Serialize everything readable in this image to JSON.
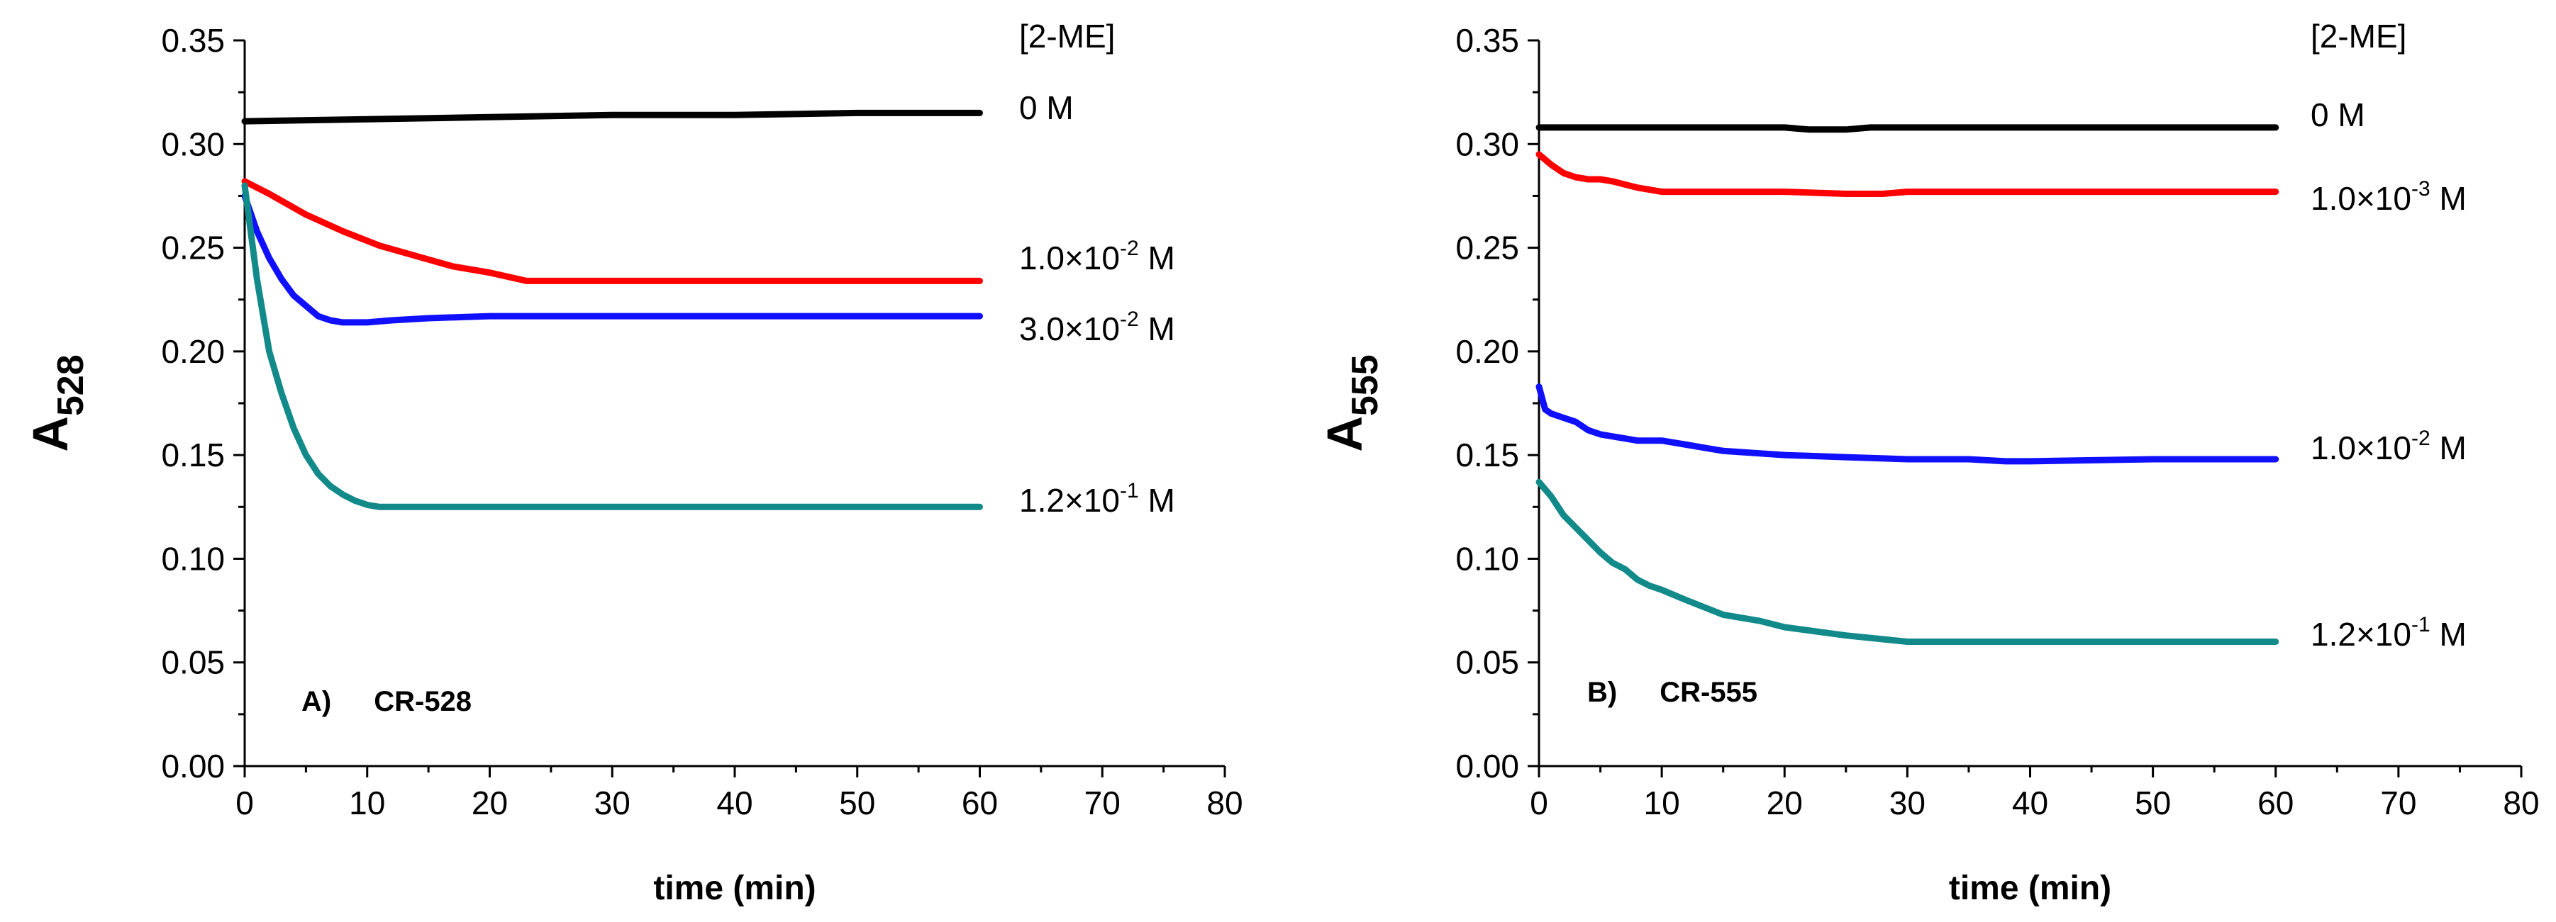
{
  "colors": {
    "black": "#000000",
    "red": "#ff0000",
    "blue": "#1010ff",
    "teal": "#138a8a"
  },
  "chart_data": [
    {
      "type": "line",
      "panel_label": "A)",
      "panel_name": "CR-528",
      "xlabel": "time (min)",
      "ylabel_main": "A",
      "ylabel_sub": "528",
      "xlim": [
        0,
        80
      ],
      "ylim": [
        0,
        0.35
      ],
      "xticks": [
        "0",
        "10",
        "20",
        "30",
        "40",
        "50",
        "60",
        "70",
        "80"
      ],
      "yticks": [
        "0.00",
        "0.05",
        "0.10",
        "0.15",
        "0.20",
        "0.25",
        "0.30",
        "0.35"
      ],
      "legend_title": "[2-ME]",
      "series": [
        {
          "name": "0 M",
          "label_base": "0 M",
          "label_sup": "",
          "label_tail": "",
          "color": "#000000",
          "x": [
            0,
            10,
            20,
            30,
            40,
            50,
            60
          ],
          "y": [
            0.311,
            0.312,
            0.313,
            0.314,
            0.314,
            0.315,
            0.315
          ]
        },
        {
          "name": "1.0×10-2 M",
          "label_base": "1.0×10",
          "label_sup": "-2",
          "label_tail": " M",
          "color": "#ff0000",
          "x": [
            0,
            2,
            5,
            8,
            11,
            14,
            17,
            20,
            23,
            30,
            40,
            50,
            60
          ],
          "y": [
            0.282,
            0.276,
            0.266,
            0.258,
            0.251,
            0.246,
            0.241,
            0.238,
            0.234,
            0.234,
            0.234,
            0.234,
            0.234
          ]
        },
        {
          "name": "3.0×10-2 M",
          "label_base": "3.0×10",
          "label_sup": "-2",
          "label_tail": " M",
          "color": "#1010ff",
          "x": [
            0,
            1,
            2,
            3,
            4,
            5,
            6,
            7,
            8,
            10,
            12,
            15,
            20,
            30,
            40,
            50,
            60
          ],
          "y": [
            0.275,
            0.258,
            0.245,
            0.235,
            0.227,
            0.222,
            0.217,
            0.215,
            0.214,
            0.214,
            0.215,
            0.216,
            0.217,
            0.217,
            0.217,
            0.217,
            0.217
          ]
        },
        {
          "name": "1.2×10-1 M",
          "label_base": "1.2×10",
          "label_sup": "-1",
          "label_tail": " M",
          "color": "#138a8a",
          "x": [
            0,
            1,
            2,
            3,
            4,
            5,
            6,
            7,
            8,
            9,
            10,
            11,
            12,
            15,
            20,
            30,
            40,
            50,
            60
          ],
          "y": [
            0.28,
            0.235,
            0.2,
            0.18,
            0.163,
            0.15,
            0.141,
            0.135,
            0.131,
            0.128,
            0.126,
            0.125,
            0.125,
            0.125,
            0.125,
            0.125,
            0.125,
            0.125,
            0.125
          ]
        }
      ]
    },
    {
      "type": "line",
      "panel_label": "B)",
      "panel_name": "CR-555",
      "xlabel": "time (min)",
      "ylabel_main": "A",
      "ylabel_sub": "555",
      "xlim": [
        0,
        80
      ],
      "ylim": [
        0,
        0.35
      ],
      "xticks": [
        "0",
        "10",
        "20",
        "30",
        "40",
        "50",
        "60",
        "70",
        "80"
      ],
      "yticks": [
        "0.00",
        "0.05",
        "0.10",
        "0.15",
        "0.20",
        "0.25",
        "0.30",
        "0.35"
      ],
      "legend_title": "[2-ME]",
      "series": [
        {
          "name": "0 M",
          "label_base": "0 M",
          "label_sup": "",
          "label_tail": "",
          "color": "#000000",
          "x": [
            0,
            10,
            20,
            22,
            25,
            27,
            30,
            40,
            50,
            60
          ],
          "y": [
            0.308,
            0.308,
            0.308,
            0.307,
            0.307,
            0.308,
            0.308,
            0.308,
            0.308,
            0.308
          ]
        },
        {
          "name": "1.0×10-3 M",
          "label_base": "1.0×10",
          "label_sup": "-3",
          "label_tail": " M",
          "color": "#ff0000",
          "x": [
            0,
            1,
            2,
            3,
            4,
            5,
            6,
            8,
            10,
            12,
            15,
            20,
            25,
            28,
            30,
            40,
            50,
            60
          ],
          "y": [
            0.295,
            0.29,
            0.286,
            0.284,
            0.283,
            0.283,
            0.282,
            0.279,
            0.277,
            0.277,
            0.277,
            0.277,
            0.276,
            0.276,
            0.277,
            0.277,
            0.277,
            0.277
          ]
        },
        {
          "name": "1.0×10-2 M",
          "label_base": "1.0×10",
          "label_sup": "-2",
          "label_tail": " M",
          "color": "#1010ff",
          "x": [
            0,
            0.5,
            1,
            2,
            3,
            4,
            5,
            6,
            8,
            10,
            12,
            15,
            20,
            25,
            30,
            35,
            38,
            40,
            50,
            60
          ],
          "y": [
            0.183,
            0.172,
            0.17,
            0.168,
            0.166,
            0.162,
            0.16,
            0.159,
            0.157,
            0.157,
            0.155,
            0.152,
            0.15,
            0.149,
            0.148,
            0.148,
            0.147,
            0.147,
            0.148,
            0.148
          ]
        },
        {
          "name": "1.2×10-1 M",
          "label_base": "1.2×10",
          "label_sup": "-1",
          "label_tail": " M",
          "color": "#138a8a",
          "x": [
            0,
            1,
            2,
            3,
            4,
            5,
            6,
            7,
            8,
            9,
            10,
            12,
            15,
            18,
            20,
            25,
            30,
            40,
            50,
            60
          ],
          "y": [
            0.137,
            0.13,
            0.121,
            0.115,
            0.109,
            0.103,
            0.098,
            0.095,
            0.09,
            0.087,
            0.085,
            0.08,
            0.073,
            0.07,
            0.067,
            0.063,
            0.06,
            0.06,
            0.06,
            0.06
          ]
        }
      ]
    }
  ]
}
